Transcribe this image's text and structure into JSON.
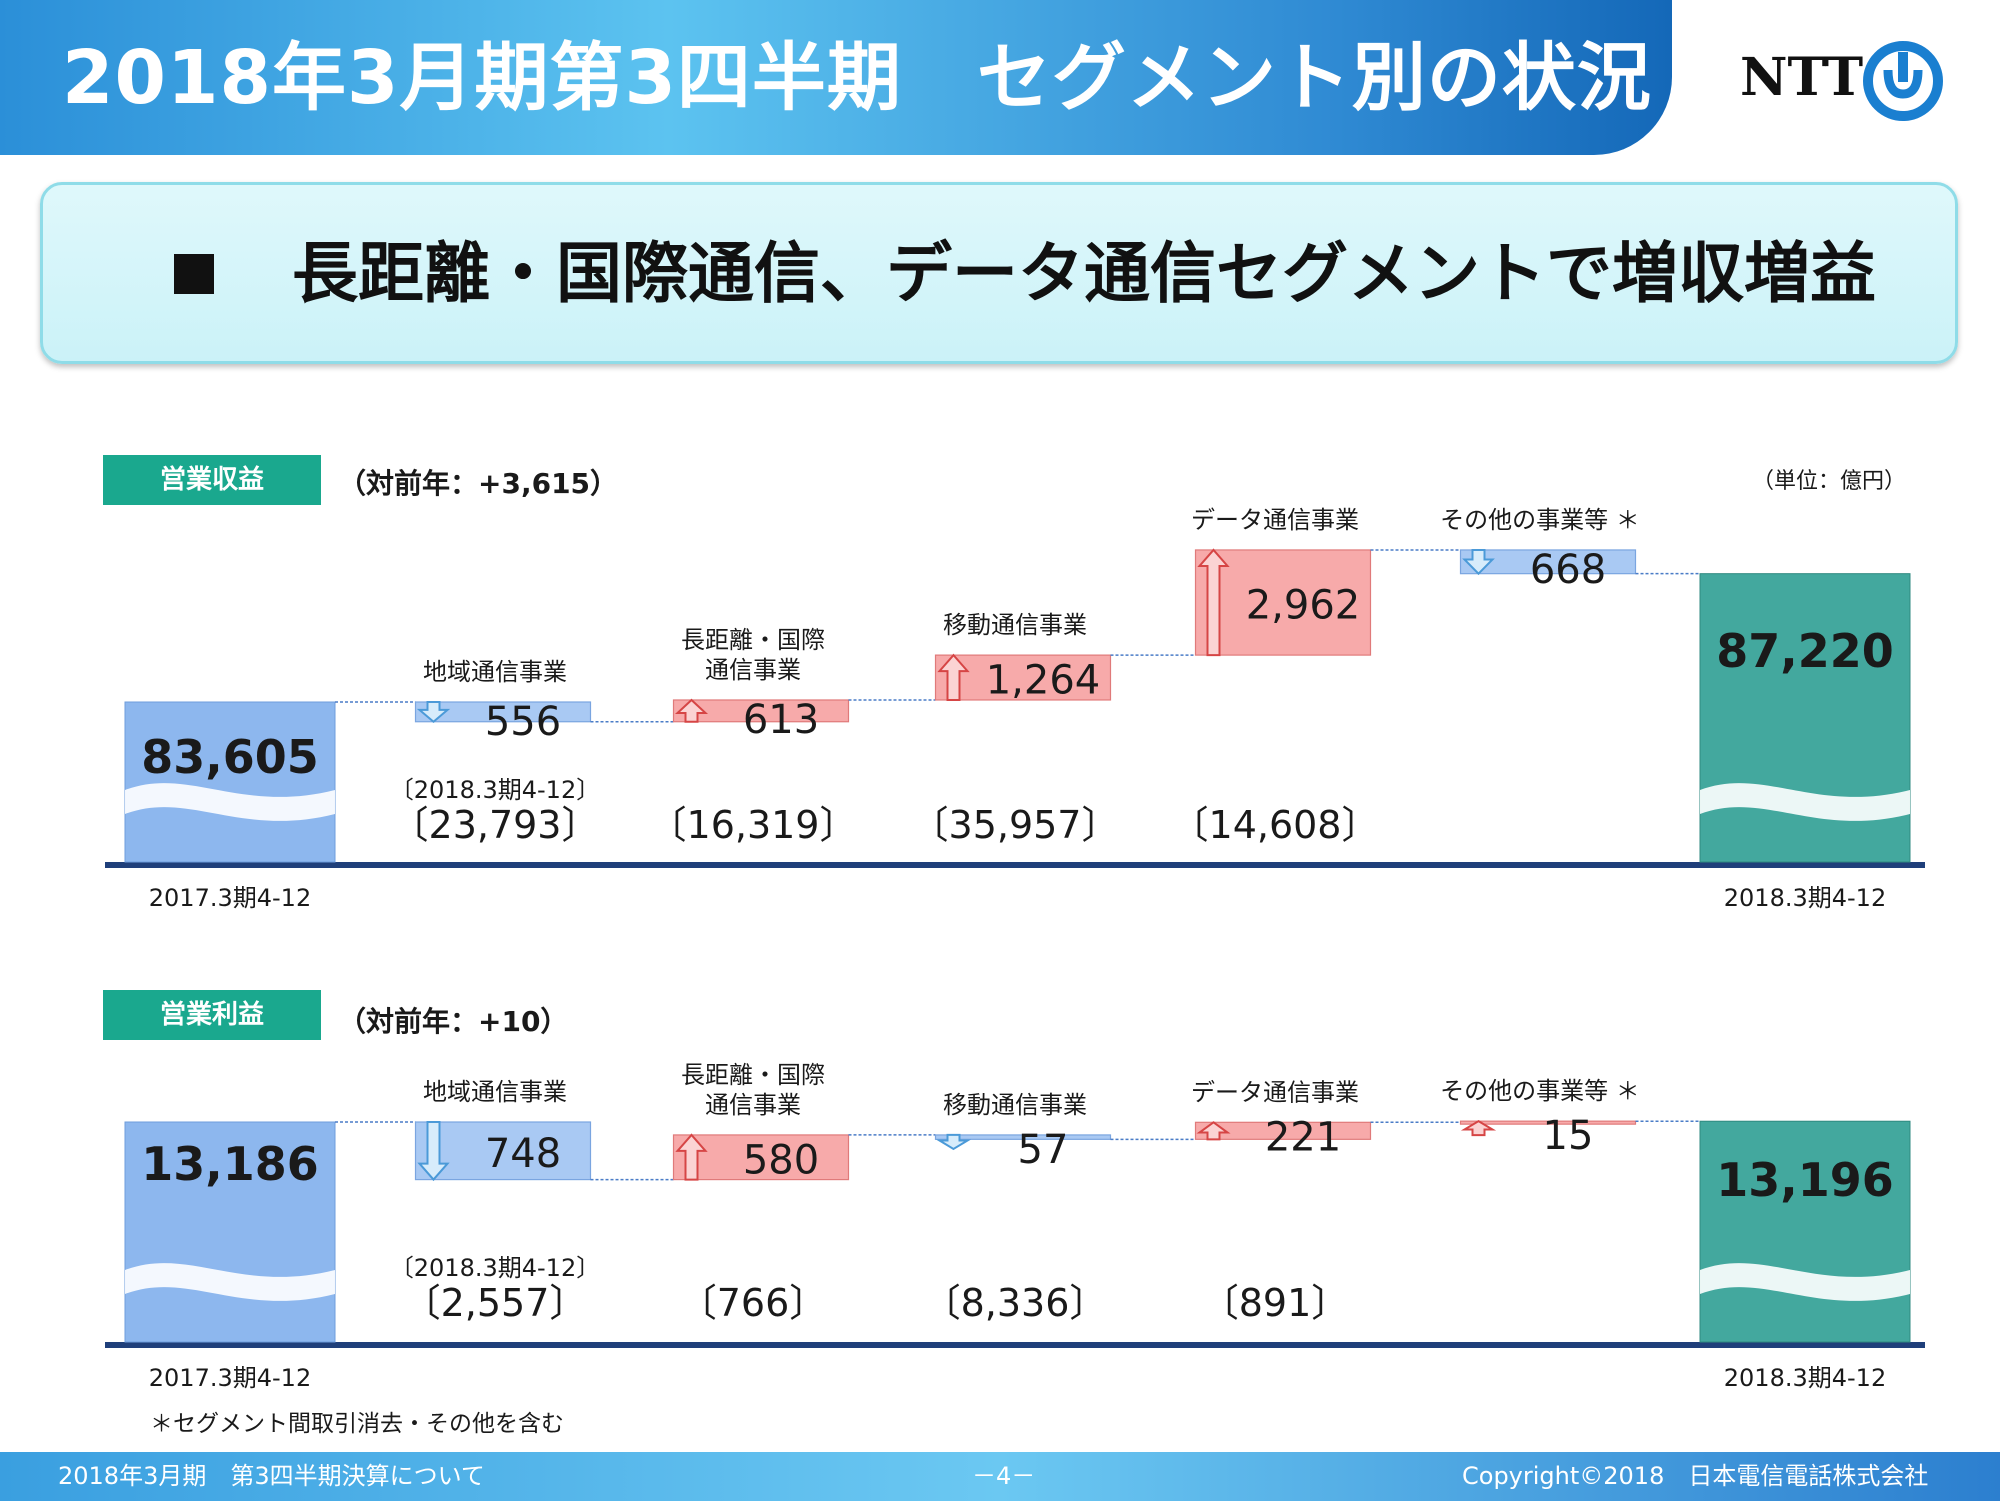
{
  "header": {
    "title": "2018年3月期第3四半期　セグメント別の状況",
    "logo": "NTT",
    "logo_icon": "ntt-mark-icon",
    "brand_color": "#2f8ad3"
  },
  "headline": "長距離・国際通信、データ通信セグメントで増収増益",
  "unit_note": "（単位：億円）",
  "footnote": "＊セグメント間取引消去・その他を含む",
  "footer": {
    "left": "2018年3月期　第3四半期決算について",
    "center": "－4－",
    "right": "Copyright©2018　日本電信電話株式会社"
  },
  "chart_data": [
    {
      "type": "bar",
      "subtype": "waterfall",
      "tag": "営業収益",
      "change_note": "（対前年：+3,615）",
      "start": {
        "label": "83,605",
        "value": 83605,
        "period": "2017.3期4-12"
      },
      "end": {
        "label": "87,220",
        "value": 87220,
        "period": "2018.3期4-12"
      },
      "prior_period_caption": "〔2018.3期4-12〕",
      "steps": [
        {
          "name": "地域通信事業",
          "direction": "down",
          "label": "556",
          "value": -556,
          "segment_total": "〔23,793〕"
        },
        {
          "name": "長距離・国際通信事業",
          "name_lines": [
            "長距離・国際",
            "通信事業"
          ],
          "direction": "up",
          "label": "613",
          "value": 613,
          "segment_total": "〔16,319〕"
        },
        {
          "name": "移動通信事業",
          "direction": "up",
          "label": "1,264",
          "value": 1264,
          "segment_total": "〔35,957〕"
        },
        {
          "name": "データ通信事業",
          "direction": "up",
          "label": "2,962",
          "value": 2962,
          "segment_total": "〔14,608〕"
        },
        {
          "name": "その他の事業等 ＊",
          "direction": "down",
          "label": "668",
          "value": -668,
          "segment_total": ""
        }
      ],
      "colors": {
        "start": "#8db7ee",
        "end": "#43a89e",
        "up": "#f7aaaa",
        "down": "#a9c9f3"
      }
    },
    {
      "type": "bar",
      "subtype": "waterfall",
      "tag": "営業利益",
      "change_note": "（対前年：+10）",
      "start": {
        "label": "13,186",
        "value": 13186,
        "period": "2017.3期4-12"
      },
      "end": {
        "label": "13,196",
        "value": 13196,
        "period": "2018.3期4-12"
      },
      "prior_period_caption": "〔2018.3期4-12〕",
      "steps": [
        {
          "name": "地域通信事業",
          "direction": "down",
          "label": "748",
          "value": -748,
          "segment_total": "〔2,557〕"
        },
        {
          "name": "長距離・国際通信事業",
          "name_lines": [
            "長距離・国際",
            "通信事業"
          ],
          "direction": "up",
          "label": "580",
          "value": 580,
          "segment_total": "〔766〕"
        },
        {
          "name": "移動通信事業",
          "direction": "down",
          "label": "57",
          "value": -57,
          "segment_total": "〔8,336〕"
        },
        {
          "name": "データ通信事業",
          "direction": "up",
          "label": "221",
          "value": 221,
          "segment_total": "〔891〕"
        },
        {
          "name": "その他の事業等 ＊",
          "direction": "up",
          "label": "15",
          "value": 15,
          "segment_total": ""
        }
      ],
      "colors": {
        "start": "#8db7ee",
        "end": "#43a89e",
        "up": "#f7aaaa",
        "down": "#a9c9f3"
      }
    }
  ]
}
